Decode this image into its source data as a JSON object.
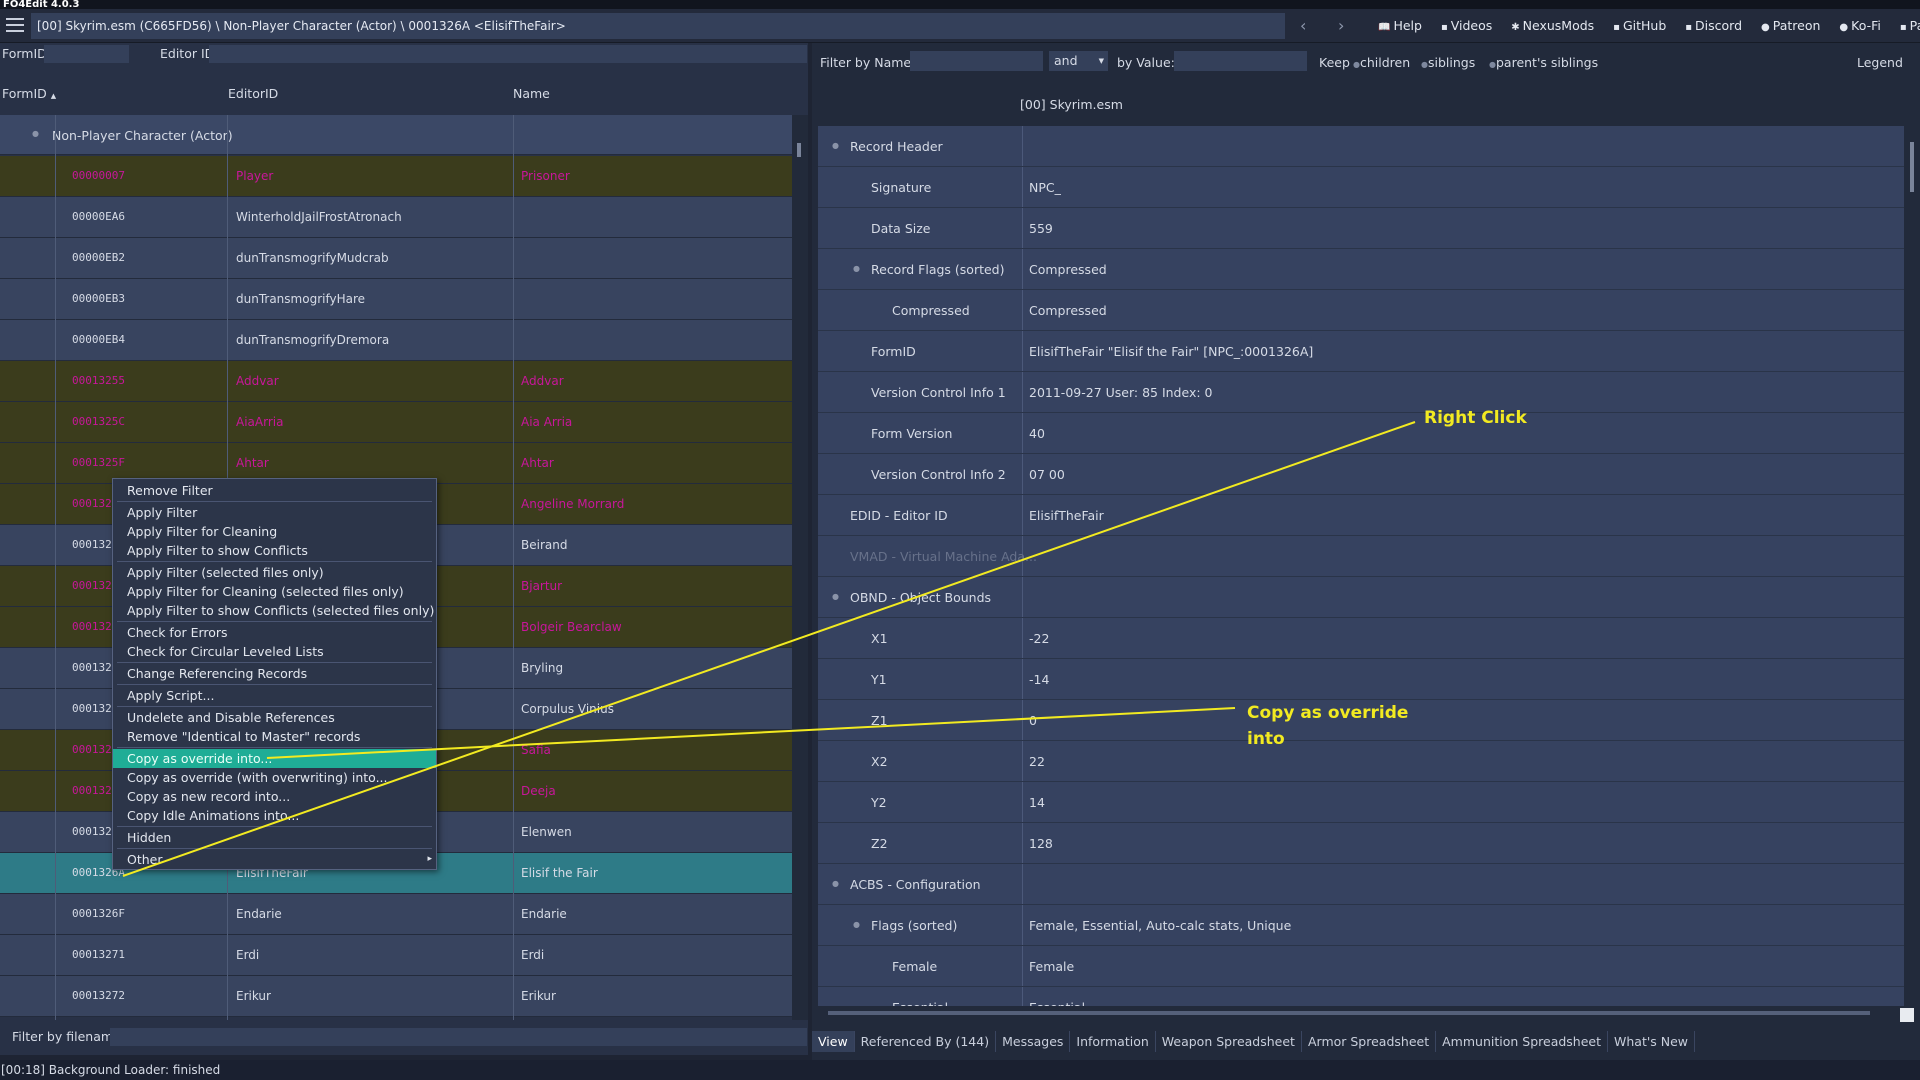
{
  "app": {
    "title": "FO4Edit 4.0.3"
  },
  "toolbar": {
    "path": "[00] Skyrim.esm (C665FD56) \\ Non-Player Character (Actor) \\ 0001326A <ElisifTheFair>",
    "links": [
      "Help",
      "Videos",
      "NexusMods",
      "GitHub",
      "Discord",
      "Patreon",
      "Ko-Fi",
      "PayPal"
    ]
  },
  "left_panel": {
    "formid_label": "FormID",
    "editorid_label": "Editor ID",
    "columns": [
      "FormID",
      "EditorID",
      "Name"
    ],
    "group_label": "Non-Player Character (Actor)",
    "rows": [
      {
        "formid": "00000007",
        "editorid": "Player",
        "name": "Prisoner",
        "conflict": true
      },
      {
        "formid": "00000EA6",
        "editorid": "WinterholdJailFrostAtronach",
        "name": "",
        "conflict": false
      },
      {
        "formid": "00000EB2",
        "editorid": "dunTransmogrifyMudcrab",
        "name": "",
        "conflict": false
      },
      {
        "formid": "00000EB3",
        "editorid": "dunTransmogrifyHare",
        "name": "",
        "conflict": false
      },
      {
        "formid": "00000EB4",
        "editorid": "dunTransmogrifyDremora",
        "name": "",
        "conflict": false
      },
      {
        "formid": "00013255",
        "editorid": "Addvar",
        "name": "Addvar",
        "conflict": true
      },
      {
        "formid": "0001325C",
        "editorid": "AiaArria",
        "name": "Aia Arria",
        "conflict": true
      },
      {
        "formid": "0001325F",
        "editorid": "Ahtar",
        "name": "Ahtar",
        "conflict": true
      },
      {
        "formid": "000132",
        "editorid": "",
        "name": "Angeline Morrard",
        "conflict": true
      },
      {
        "formid": "000132",
        "editorid": "",
        "name": "Beirand",
        "conflict": false
      },
      {
        "formid": "000132",
        "editorid": "",
        "name": "Bjartur",
        "conflict": true
      },
      {
        "formid": "000132",
        "editorid": "",
        "name": "Bolgeir Bearclaw",
        "conflict": true
      },
      {
        "formid": "000132",
        "editorid": "",
        "name": "Bryling",
        "conflict": false
      },
      {
        "formid": "000132",
        "editorid": "",
        "name": "Corpulus Vinius",
        "conflict": false
      },
      {
        "formid": "000132",
        "editorid": "",
        "name": "Safia",
        "conflict": true
      },
      {
        "formid": "000132",
        "editorid": "",
        "name": "Deeja",
        "conflict": true
      },
      {
        "formid": "000132",
        "editorid": "",
        "name": "Elenwen",
        "conflict": false
      },
      {
        "formid": "0001326A",
        "editorid": "ElisifTheFair",
        "name": "Elisif the Fair",
        "conflict": false,
        "selected": true
      },
      {
        "formid": "0001326F",
        "editorid": "Endarie",
        "name": "Endarie",
        "conflict": false
      },
      {
        "formid": "00013271",
        "editorid": "Erdi",
        "name": "Erdi",
        "conflict": false
      },
      {
        "formid": "00013272",
        "editorid": "Erikur",
        "name": "Erikur",
        "conflict": false
      }
    ],
    "filter_label": "Filter by filename:"
  },
  "context_menu": {
    "items": [
      {
        "label": "Remove Filter"
      },
      {
        "label": "Apply Filter"
      },
      {
        "label": "Apply Filter for Cleaning"
      },
      {
        "label": "Apply Filter to show Conflicts"
      },
      {
        "label": "Apply Filter (selected files only)"
      },
      {
        "label": "Apply Filter for Cleaning (selected files only)"
      },
      {
        "label": "Apply Filter to show Conflicts (selected files only)"
      },
      {
        "label": "Check for Errors"
      },
      {
        "label": "Check for Circular Leveled Lists"
      },
      {
        "label": "Change Referencing Records"
      },
      {
        "label": "Apply Script..."
      },
      {
        "label": "Undelete and Disable References"
      },
      {
        "label": "Remove \"Identical to Master\" records"
      },
      {
        "label": "Copy as override into...",
        "highlighted": true
      },
      {
        "label": "Copy as override (with overwriting) into..."
      },
      {
        "label": "Copy as new record into..."
      },
      {
        "label": "Copy Idle Animations into..."
      },
      {
        "label": "Hidden"
      },
      {
        "label": "Other",
        "submenu": true
      }
    ]
  },
  "right_panel": {
    "filter_name_label": "Filter by Name:",
    "and_label": "and",
    "by_value_label": "by Value:",
    "keep_label": "Keep",
    "keep_options": [
      "children",
      "siblings",
      "parent's siblings"
    ],
    "legend_label": "Legend",
    "file_header": "[00] Skyrim.esm",
    "records": [
      {
        "name": "Record Header",
        "value": "",
        "level": 0,
        "expand": true
      },
      {
        "name": "Signature",
        "value": "NPC_",
        "level": 1
      },
      {
        "name": "Data Size",
        "value": "559",
        "level": 1
      },
      {
        "name": "Record Flags (sorted)",
        "value": "Compressed",
        "level": 1,
        "expand": true
      },
      {
        "name": "Compressed",
        "value": "Compressed",
        "level": 2
      },
      {
        "name": "FormID",
        "value": "ElisifTheFair \"Elisif the Fair\" [NPC_:0001326A]",
        "level": 1
      },
      {
        "name": "Version Control Info 1",
        "value": "2011-09-27 User: 85 Index: 0",
        "level": 1
      },
      {
        "name": "Form Version",
        "value": "40",
        "level": 1
      },
      {
        "name": "Version Control Info 2",
        "value": "07 00",
        "level": 1
      },
      {
        "name": "EDID - Editor ID",
        "value": "ElisifTheFair",
        "level": 0
      },
      {
        "name": "VMAD - Virtual Machine Ada...",
        "value": "",
        "level": 0,
        "dim": true
      },
      {
        "name": "OBND - Object Bounds",
        "value": "",
        "level": 0,
        "expand": true
      },
      {
        "name": "X1",
        "value": "-22",
        "level": 1
      },
      {
        "name": "Y1",
        "value": "-14",
        "level": 1
      },
      {
        "name": "Z1",
        "value": "0",
        "level": 1
      },
      {
        "name": "X2",
        "value": "22",
        "level": 1
      },
      {
        "name": "Y2",
        "value": "14",
        "level": 1
      },
      {
        "name": "Z2",
        "value": "128",
        "level": 1
      },
      {
        "name": "ACBS - Configuration",
        "value": "",
        "level": 0,
        "expand": true
      },
      {
        "name": "Flags (sorted)",
        "value": "Female, Essential, Auto-calc stats, Unique",
        "level": 1,
        "expand": true
      },
      {
        "name": "Female",
        "value": "Female",
        "level": 2
      },
      {
        "name": "Essential",
        "value": "Essential",
        "level": 2
      }
    ],
    "tabs": [
      "View",
      "Referenced By (144)",
      "Messages",
      "Information",
      "Weapon Spreadsheet",
      "Armor Spreadsheet",
      "Ammunition Spreadsheet",
      "What's New"
    ]
  },
  "annotations": {
    "right_click": "Right Click",
    "copy_override_1": "Copy as override",
    "copy_override_2": "into",
    "color": "#f2ea21"
  },
  "status": {
    "text": "[00:18] Background Loader: finished"
  }
}
